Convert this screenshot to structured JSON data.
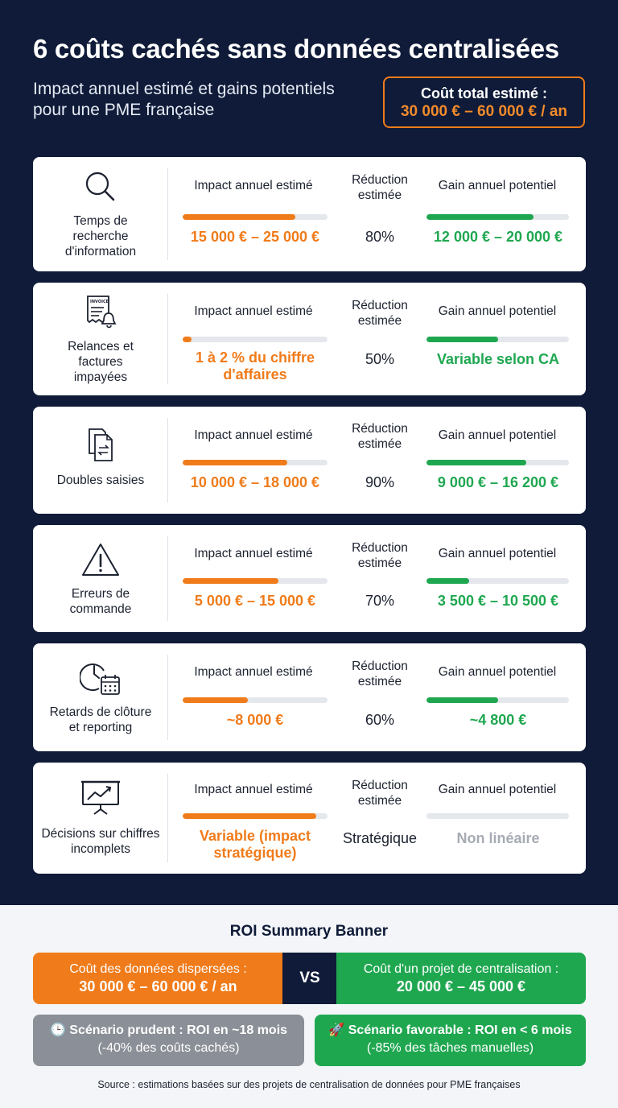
{
  "header": {
    "title": "6 coûts cachés sans données centralisées",
    "subtitle": "Impact annuel estimé et gains potentiels pour une PME française",
    "total_label": "Coût total estimé :",
    "total_value": "30 000 € – 60 000 € / an"
  },
  "colors": {
    "navy": "#0f1b38",
    "orange": "#f07b1a",
    "green": "#1fa750",
    "gray": "#8b8f97"
  },
  "columns": {
    "impact": "Impact annuel estimé",
    "reduction": "Réduction estimée",
    "gain": "Gain annuel potentiel"
  },
  "cards": [
    {
      "icon": "magnifier-icon",
      "label": "Temps de recherche d'information",
      "impact": "15 000 € – 25 000 €",
      "impact_fill": 0.78,
      "reduction": "80%",
      "gain": "12 000 € – 20 000 €",
      "gain_fill": 0.75
    },
    {
      "icon": "invoice-bell-icon",
      "icon_text": "INVOICE",
      "label": "Relances et factures impayées",
      "impact": "1 à 2 % du chiffre d'affaires",
      "impact_fill": 0.06,
      "reduction": "50%",
      "gain": "Variable selon CA",
      "gain_fill": 0.5
    },
    {
      "icon": "duplicate-docs-icon",
      "label": "Doubles saisies",
      "impact": "10 000 € – 18 000 €",
      "impact_fill": 0.72,
      "reduction": "90%",
      "gain": "9 000 € – 16 200 €",
      "gain_fill": 0.7
    },
    {
      "icon": "warning-icon",
      "label": "Erreurs de commande",
      "impact": "5 000 € – 15 000 €",
      "impact_fill": 0.66,
      "reduction": "70%",
      "gain": "3 500 € – 10 500 €",
      "gain_fill": 0.3
    },
    {
      "icon": "clock-calendar-icon",
      "label": "Retards de clôture et reporting",
      "impact": "~8 000 €",
      "impact_fill": 0.45,
      "reduction": "60%",
      "gain": "~4 800 €",
      "gain_fill": 0.5
    },
    {
      "icon": "chart-presentation-icon",
      "label": "Décisions sur chiffres incomplets",
      "impact": "Variable (impact stratégique)",
      "impact_fill": 0.92,
      "reduction": "Stratégique",
      "gain": "Non linéaire",
      "gain_fill": 0
    }
  ],
  "roi": {
    "title": "ROI Summary Banner",
    "left_l1": "Coût des données dispersées :",
    "left_l2": "30 000 € – 60 000 € / an",
    "vs": "VS",
    "right_l1": "Coût d'un projet de centralisation :",
    "right_l2": "20 000 € – 45 000 €",
    "scen_a_title": "🕒 Scénario prudent : ROI en ~18 mois",
    "scen_a_sub": "(-40% des coûts cachés)",
    "scen_b_title": "🚀 Scénario favorable : ROI en < 6 mois",
    "scen_b_sub": "(-85% des tâches manuelles)",
    "source": "Source : estimations basées sur des projets de centralisation de données pour PME françaises"
  }
}
